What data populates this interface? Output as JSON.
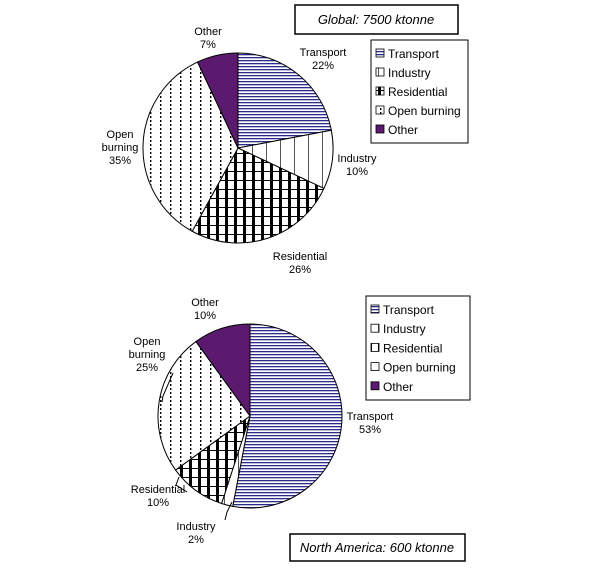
{
  "chart_data": [
    {
      "type": "pie",
      "title": "Global: 7500 ktonne",
      "legend": [
        "Transport",
        "Industry",
        "Residential",
        "Open burning",
        "Other"
      ],
      "slices": [
        {
          "label": "Transport",
          "value": 22,
          "text": "22%"
        },
        {
          "label": "Industry",
          "value": 10,
          "text": "10%"
        },
        {
          "label": "Residential",
          "value": 26,
          "text": "26%"
        },
        {
          "label": "Open burning",
          "value": 35,
          "text": "35%"
        },
        {
          "label": "Other",
          "value": 7,
          "text": "7%"
        }
      ],
      "legend_position": "top-right"
    },
    {
      "type": "pie",
      "title": "North America: 600 ktonne",
      "legend": [
        "Transport",
        "Industry",
        "Residential",
        "Open burning",
        "Other"
      ],
      "slices": [
        {
          "label": "Transport",
          "value": 53,
          "text": "53%"
        },
        {
          "label": "Industry",
          "value": 2,
          "text": "2%"
        },
        {
          "label": "Residential",
          "value": 10,
          "text": "10%"
        },
        {
          "label": "Open burning",
          "value": 25,
          "text": "25%"
        },
        {
          "label": "Other",
          "value": 10,
          "text": "10%"
        }
      ],
      "legend_position": "top-right"
    }
  ],
  "colors": {
    "transport_lines": "#2b2b8c",
    "other_fill": "#5b1a6e",
    "stroke": "#000000"
  }
}
